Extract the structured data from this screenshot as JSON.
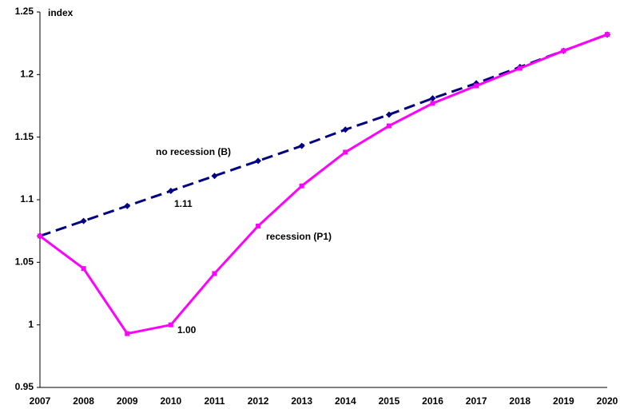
{
  "chart_data": {
    "type": "line",
    "y_label": "index",
    "categories": [
      "2007",
      "2008",
      "2009",
      "2010",
      "2011",
      "2012",
      "2013",
      "2014",
      "2015",
      "2016",
      "2017",
      "2018",
      "2019",
      "2020"
    ],
    "series": [
      {
        "name": "no recession (B)",
        "color": "#000080",
        "dashed": true,
        "marker": "diamond",
        "values": [
          1.071,
          1.083,
          1.095,
          1.107,
          1.119,
          1.131,
          1.143,
          1.156,
          1.168,
          1.181,
          1.193,
          1.206,
          1.219,
          1.232
        ]
      },
      {
        "name": "recession (P1)",
        "color": "#ff00ff",
        "dashed": false,
        "marker": "square",
        "values": [
          1.071,
          1.045,
          0.993,
          1.0,
          1.041,
          1.079,
          1.111,
          1.138,
          1.159,
          1.177,
          1.191,
          1.205,
          1.219,
          1.232
        ]
      }
    ],
    "annotations": [
      "1.11",
      "1.00"
    ],
    "ylim": [
      0.95,
      1.25
    ],
    "yticks": [
      0.95,
      1,
      1.05,
      1.1,
      1.15,
      1.2,
      1.25
    ],
    "grid": false
  }
}
